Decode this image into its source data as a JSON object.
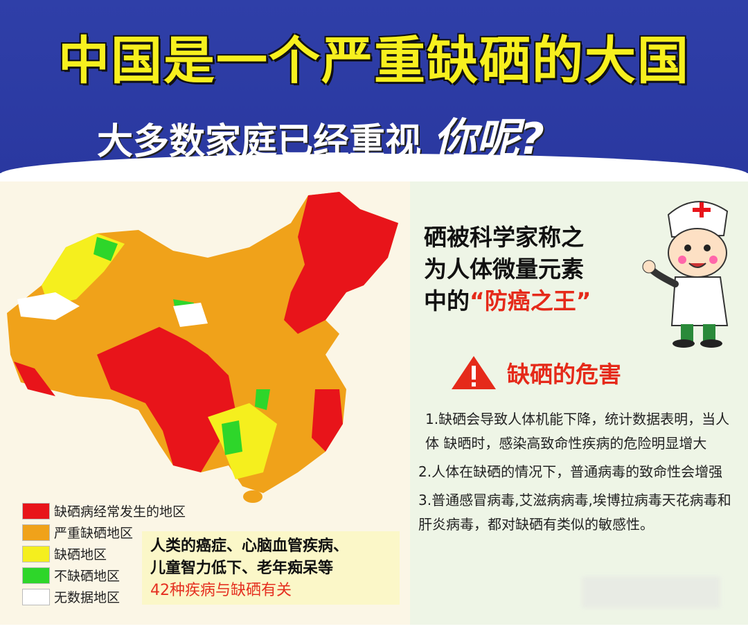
{
  "header": {
    "title": "中国是一个严重缺硒的大国",
    "subtitle": "大多数家庭已经重视",
    "subtitle_emphasis": "你呢?"
  },
  "legend": [
    {
      "label": "缺硒病经常发生的地区",
      "color": "#e8141a"
    },
    {
      "label": "严重缺硒地区",
      "color": "#f0a21a"
    },
    {
      "label": "缺硒地区",
      "color": "#f5ef1e"
    },
    {
      "label": "不缺硒地区",
      "color": "#2ed62a"
    },
    {
      "label": "无数据地区",
      "color": "#ffffff"
    }
  ],
  "note": {
    "line1": "人类的癌症、心脑血管疾病、",
    "line2": "儿童智力低下、老年痴呆等",
    "line3": "42种疾病与缺硒有关"
  },
  "intro": {
    "line1": "硒被科学家称之",
    "line2": "为人体微量元素",
    "line3_prefix": "中的",
    "line3_highlight": "“防癌之王”"
  },
  "warning": {
    "icon": "warning-triangle-icon",
    "title": "缺硒的危害"
  },
  "points": [
    "1.缺硒会导致人体机能下降，统计数据表明，当人体 缺晒时，感染高致命性疾病的危险明显增大",
    "2.人体在缺硒的情况下，普通病毒的致命性会增强",
    "3.普通感冒病毒,艾滋病病毒,埃博拉病毒天花病毒和肝炎病毒，都对缺硒有类似的敏感性。"
  ]
}
